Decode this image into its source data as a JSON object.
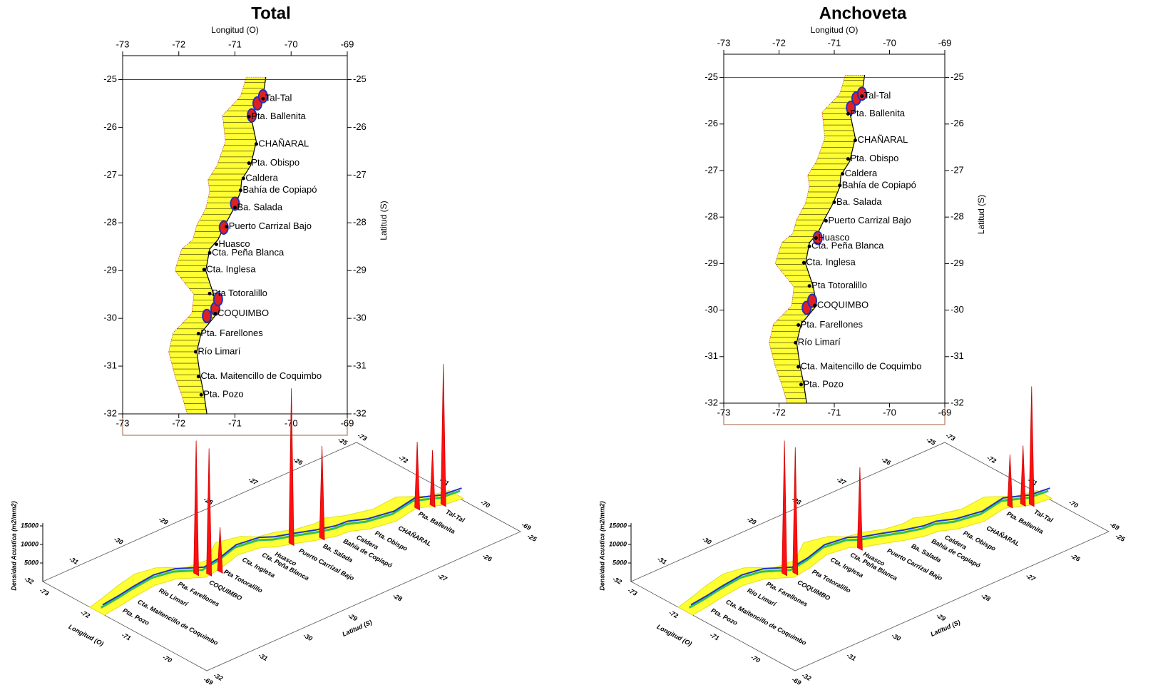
{
  "places": [
    {
      "name": "Tal-Tal",
      "lon": -70.5,
      "lat": -25.4
    },
    {
      "name": "Pta. Ballenita",
      "lon": -70.75,
      "lat": -25.78
    },
    {
      "name": "CHAÑARAL",
      "lon": -70.62,
      "lat": -26.35
    },
    {
      "name": "Pta. Obispo",
      "lon": -70.75,
      "lat": -26.75
    },
    {
      "name": "Caldera",
      "lon": -70.85,
      "lat": -27.07
    },
    {
      "name": "Bahía de Copiapó",
      "lon": -70.9,
      "lat": -27.32
    },
    {
      "name": "Ba. Salada",
      "lon": -71.0,
      "lat": -27.68
    },
    {
      "name": "Puerto Carrizal Bajo",
      "lon": -71.15,
      "lat": -28.08
    },
    {
      "name": "Huasco",
      "lon": -71.33,
      "lat": -28.45
    },
    {
      "name": "Cta. Peña Blanca",
      "lon": -71.45,
      "lat": -28.63
    },
    {
      "name": "Cta. Inglesa",
      "lon": -71.55,
      "lat": -28.98
    },
    {
      "name": "Pta Totoralillo",
      "lon": -71.45,
      "lat": -29.48
    },
    {
      "name": "COQUIMBO",
      "lon": -71.35,
      "lat": -29.9
    },
    {
      "name": "Pta. Farellones",
      "lon": -71.65,
      "lat": -30.32
    },
    {
      "name": "Río Limarí",
      "lon": -71.7,
      "lat": -30.7
    },
    {
      "name": "Cta. Maitencillo de Coquimbo",
      "lon": -71.65,
      "lat": -31.22
    },
    {
      "name": "Pta. Pozo",
      "lon": -71.6,
      "lat": -31.6
    }
  ],
  "panels": [
    {
      "title": "Total",
      "map": {
        "xlabel": "Longitud (O)",
        "ylabel": "Latitud (S)",
        "xlim": [
          -73,
          -69
        ],
        "ylim": [
          -32,
          -24.5
        ],
        "xticks": [
          -73,
          -72,
          -71,
          -70,
          -69
        ],
        "yticks": [
          -25,
          -26,
          -27,
          -28,
          -29,
          -30,
          -31,
          -32
        ]
      },
      "surface": {
        "zlabel": "Densidad Acustica (m2/mm2)",
        "zticks": [
          5000,
          10000,
          15000
        ],
        "peaks": [
          {
            "lon": -71.5,
            "lat": -29.95,
            "z": 36000
          },
          {
            "lon": -71.35,
            "lat": -29.8,
            "z": 34000
          },
          {
            "lon": -71.3,
            "lat": -29.6,
            "z": 12000
          },
          {
            "lon": -71.2,
            "lat": -28.1,
            "z": 42000
          },
          {
            "lon": -71.0,
            "lat": -27.6,
            "z": 25000
          },
          {
            "lon": -70.7,
            "lat": -25.75,
            "z": 18000
          },
          {
            "lon": -70.6,
            "lat": -25.5,
            "z": 15000
          },
          {
            "lon": -70.5,
            "lat": -25.35,
            "z": 38000
          }
        ]
      }
    },
    {
      "title": "Anchoveta",
      "map": {
        "xlabel": "Longitud (O)",
        "ylabel": "Latitud (S)",
        "xlim": [
          -73,
          -69
        ],
        "ylim": [
          -32,
          -24.5
        ],
        "xticks": [
          -73,
          -72,
          -71,
          -70,
          -69
        ],
        "yticks": [
          -25,
          -26,
          -27,
          -28,
          -29,
          -30,
          -31,
          -32
        ]
      },
      "surface": {
        "zlabel": "Densidad Acustica (m2/mm2)",
        "zticks": [
          5000,
          10000,
          15000
        ],
        "peaks": [
          {
            "lon": -71.5,
            "lat": -29.95,
            "z": 36000
          },
          {
            "lon": -71.4,
            "lat": -29.8,
            "z": 34000
          },
          {
            "lon": -71.3,
            "lat": -28.45,
            "z": 22000
          },
          {
            "lon": -70.7,
            "lat": -25.65,
            "z": 14000
          },
          {
            "lon": -70.6,
            "lat": -25.45,
            "z": 16000
          },
          {
            "lon": -70.5,
            "lat": -25.35,
            "z": 32000
          }
        ]
      }
    }
  ]
}
